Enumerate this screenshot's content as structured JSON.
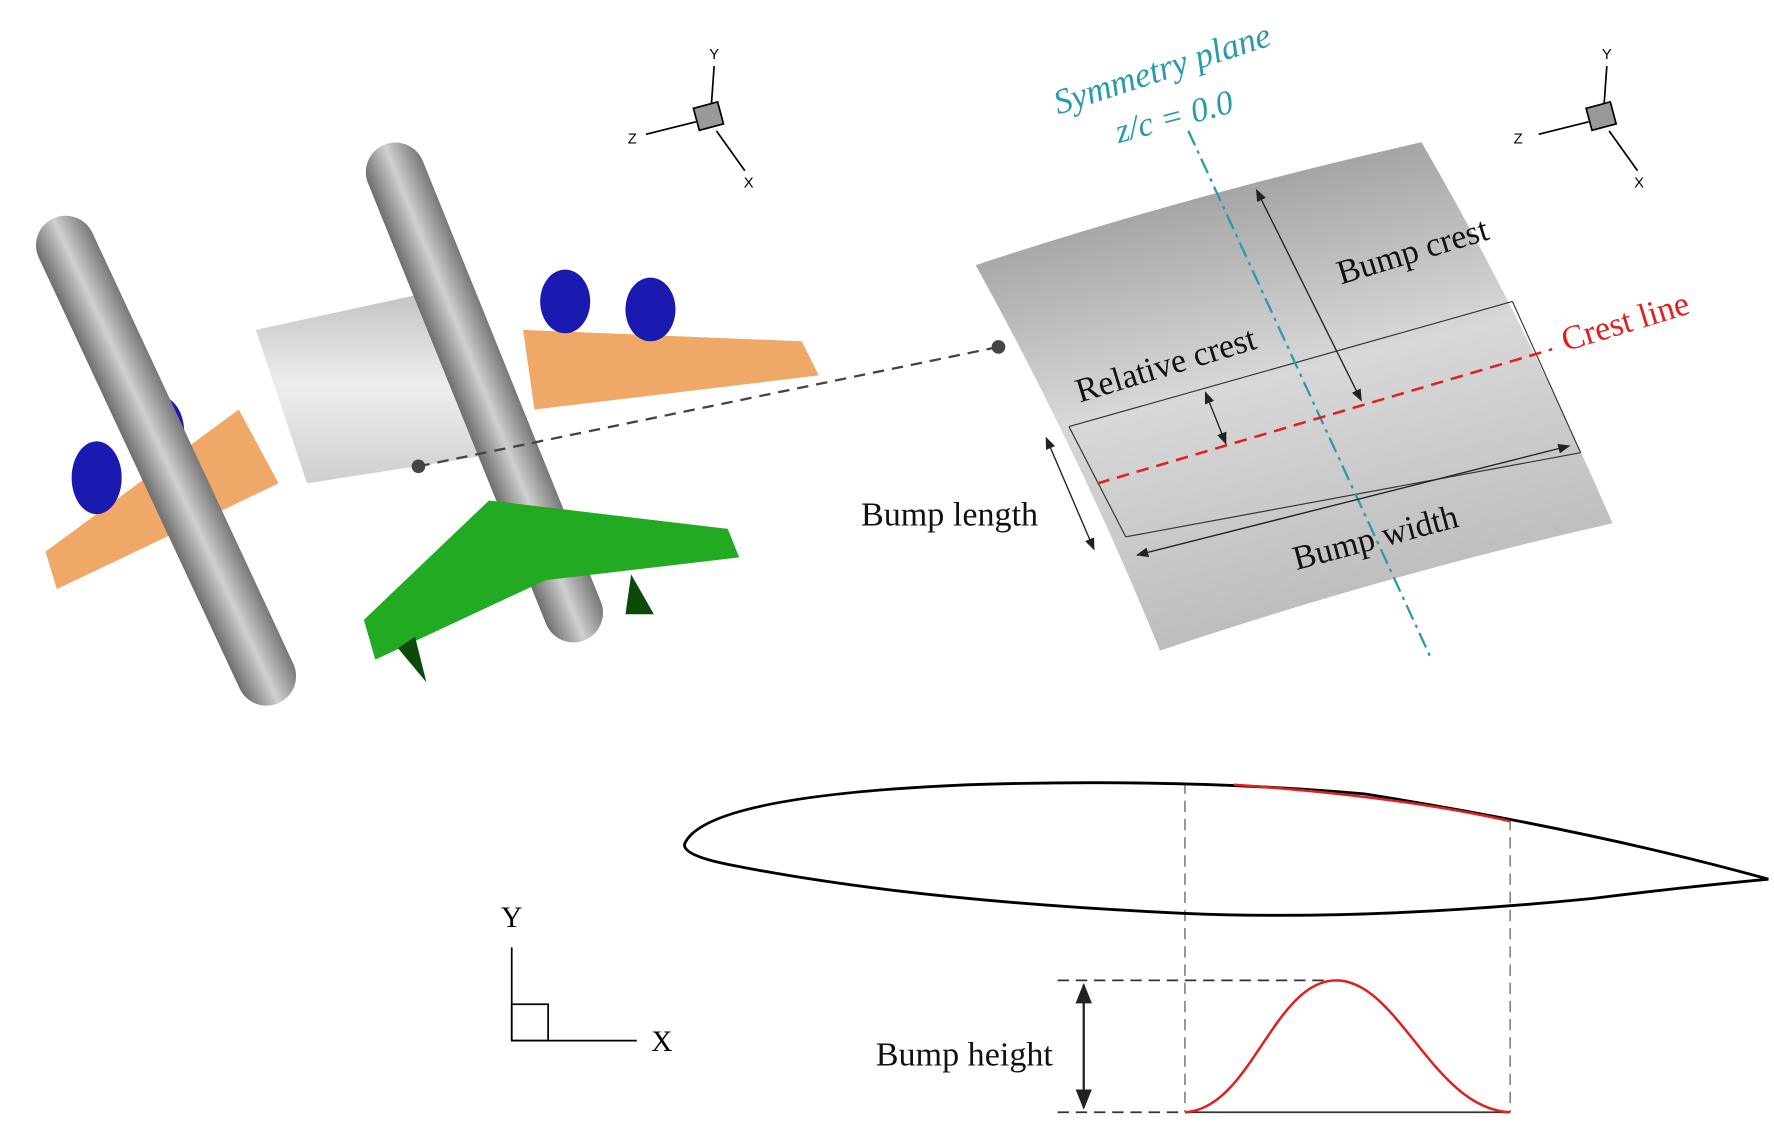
{
  "diagram": {
    "axes_3d_left": {
      "y": "Y",
      "z": "Z",
      "x": "X"
    },
    "axes_3d_right": {
      "y": "Y",
      "z": "Z",
      "x": "X"
    },
    "labels": {
      "symmetry_plane": "Symmetry plane",
      "symmetry_value": "z/c = 0.0",
      "bump_crest": "Bump crest",
      "crest_line": "Crest line",
      "relative_crest": "Relative crest",
      "bump_length": "Bump length",
      "bump_width": "Bump width",
      "bump_height": "Bump height"
    },
    "axes_2d": {
      "y": "Y",
      "x": "X"
    }
  }
}
